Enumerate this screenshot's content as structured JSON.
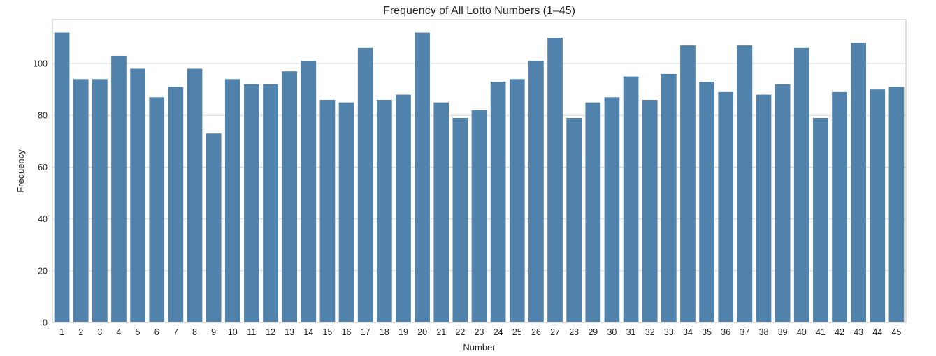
{
  "chart_data": {
    "type": "bar",
    "title": "Frequency of All Lotto Numbers (1–45)",
    "xlabel": "Number",
    "ylabel": "Frequency",
    "categories": [
      "1",
      "2",
      "3",
      "4",
      "5",
      "6",
      "7",
      "8",
      "9",
      "10",
      "11",
      "12",
      "13",
      "14",
      "15",
      "16",
      "17",
      "18",
      "19",
      "20",
      "21",
      "22",
      "23",
      "24",
      "25",
      "26",
      "27",
      "28",
      "29",
      "30",
      "31",
      "32",
      "33",
      "34",
      "35",
      "36",
      "37",
      "38",
      "39",
      "40",
      "41",
      "42",
      "43",
      "44",
      "45"
    ],
    "values": [
      112,
      94,
      94,
      103,
      98,
      87,
      91,
      98,
      73,
      94,
      92,
      92,
      97,
      101,
      86,
      85,
      106,
      86,
      88,
      112,
      85,
      79,
      82,
      93,
      94,
      101,
      110,
      79,
      85,
      87,
      95,
      86,
      96,
      107,
      93,
      89,
      107,
      88,
      92,
      106,
      79,
      89,
      108,
      90,
      91
    ],
    "ylim": [
      0,
      117
    ],
    "yticks": [
      0,
      20,
      40,
      60,
      80,
      100
    ],
    "grid": true,
    "bar_color": "#5182ab",
    "grid_color": "#d9d9d9",
    "frame_color": "#cccccc"
  }
}
